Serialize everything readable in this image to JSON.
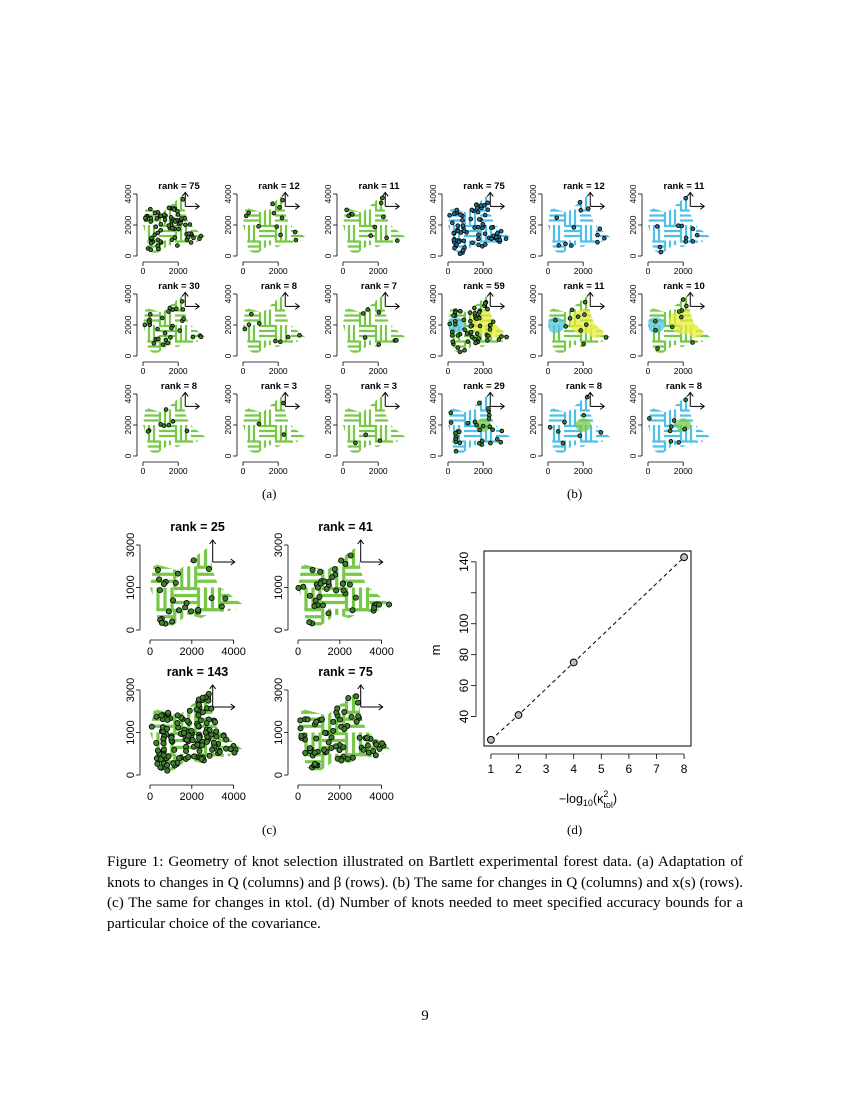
{
  "panel_a": {
    "label": "(a)",
    "ranks": [
      [
        "75",
        "12",
        "11"
      ],
      [
        "30",
        "8",
        "7"
      ],
      [
        "8",
        "3",
        "3"
      ]
    ],
    "rank_prefix": "rank = ",
    "y_ticks": [
      "0",
      "2000",
      "4000"
    ],
    "x_ticks": [
      "0",
      "2000"
    ]
  },
  "panel_b": {
    "label": "(b)",
    "ranks": [
      [
        "75",
        "12",
        "11"
      ],
      [
        "59",
        "11",
        "10"
      ],
      [
        "29",
        "8",
        "8"
      ]
    ],
    "rank_prefix": "rank = ",
    "y_ticks": [
      "0",
      "2000",
      "4000"
    ],
    "x_ticks": [
      "0",
      "2000"
    ]
  },
  "panel_c": {
    "label": "(c)",
    "ranks": [
      [
        "25",
        "41"
      ],
      [
        "143",
        "75"
      ]
    ],
    "rank_prefix": "rank = ",
    "y_ticks": [
      "0",
      "1000",
      "3000"
    ],
    "x_ticks": [
      "0",
      "2000",
      "4000"
    ]
  },
  "panel_d": {
    "label": "(d)",
    "xlabel": "−log10(κ²tol)",
    "ylabel": "m"
  },
  "chart_data": {
    "type": "scatter",
    "title": "",
    "xlabel": "−log10(κ²tol)",
    "ylabel": "m",
    "x": [
      1,
      2,
      4,
      8
    ],
    "y": [
      25,
      41,
      75,
      143
    ],
    "x_ticks": [
      1,
      2,
      3,
      4,
      5,
      6,
      7,
      8
    ],
    "y_ticks": [
      40,
      60,
      80,
      100,
      140
    ],
    "xlim": [
      0.75,
      8.25
    ],
    "ylim": [
      21,
      147
    ],
    "line": "dashed",
    "grid": false
  },
  "caption": "Figure 1: Geometry of knot selection illustrated on Bartlett experimental forest data. (a) Adaptation of knots to changes in Q (columns) and β (rows). (b) The same for changes in Q (columns) and x(s) (rows). (c) The same for changes in κtol. (d) Number of knots needed to meet specified accuracy bounds for a particular choice of the covariance.",
  "page_number": "9",
  "colors": {
    "green": "#77c846",
    "blue": "#4fc1e9",
    "yellow": "#e8ec3c",
    "knot_fill": "#3f7f2f"
  }
}
